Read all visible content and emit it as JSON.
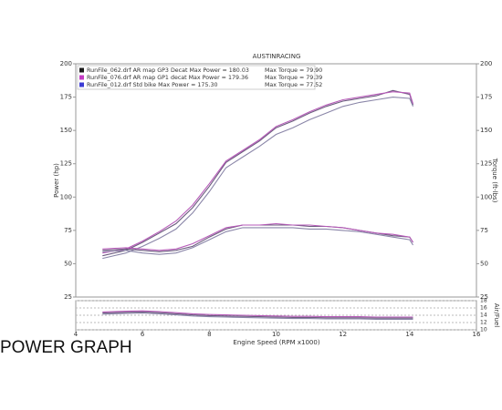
{
  "caption": "POWER GRAPH",
  "chart_data": [
    {
      "type": "line",
      "title": "AUSTINRACING",
      "y_label": "Power (hp)",
      "y2_label": "Torque (ft-lbs)",
      "xlim": [
        4,
        16
      ],
      "ylim": [
        25,
        200
      ],
      "yticks": [
        25,
        50,
        75,
        100,
        125,
        150,
        175,
        200
      ],
      "y2lim": [
        25,
        200
      ],
      "y2ticks": [
        25,
        50,
        75,
        100,
        125,
        150,
        175,
        200
      ],
      "x": [
        4.8,
        5.5,
        6,
        6.5,
        7,
        7.5,
        8,
        8.5,
        9,
        9.5,
        10,
        10.5,
        11,
        11.5,
        12,
        12.5,
        13,
        13.5,
        14,
        14.1
      ],
      "series": [
        {
          "name": "RunFile_062.drf AR map GP3 Decat Max Power = 180.03",
          "color": "#6b5a7e",
          "marker": "#1a1a1a",
          "values": [
            56,
            60,
            66,
            73,
            80,
            92,
            108,
            126,
            134,
            142,
            152,
            157,
            163,
            168,
            172,
            174,
            176,
            180,
            177,
            169
          ]
        },
        {
          "name": "RunFile_076.drf AR map GP1 decat Max Power = 179.36",
          "color": "#b65ab8",
          "marker": "#c43cc4",
          "values": [
            58,
            61,
            67,
            74,
            82,
            94,
            110,
            127,
            135,
            143,
            153,
            158,
            164,
            169,
            173,
            175,
            177,
            179,
            178,
            170
          ]
        },
        {
          "name": "RunFile_012.drf Std bike Max Power = 175.30",
          "color": "#8a86a8",
          "marker": "#3c3cd4",
          "values": [
            54,
            58,
            63,
            69,
            76,
            88,
            104,
            122,
            130,
            138,
            147,
            152,
            158,
            163,
            168,
            171,
            173,
            175,
            174,
            168
          ]
        },
        {
          "name": "Max Torque = 79.90",
          "color": "#6b5a7e",
          "axis": "y2",
          "values": [
            60,
            61,
            60,
            59,
            60,
            63,
            70,
            76,
            79,
            79,
            79,
            79,
            78,
            78,
            77,
            75,
            73,
            71,
            70,
            66
          ]
        },
        {
          "name": "Max Torque = 79.39",
          "color": "#b65ab8",
          "axis": "y2",
          "values": [
            61,
            62,
            61,
            60,
            61,
            65,
            71,
            77,
            79,
            79,
            80,
            79,
            79,
            78,
            77,
            75,
            73,
            72,
            70,
            66
          ]
        },
        {
          "name": "Max Torque = 77.52",
          "color": "#8a86a8",
          "axis": "y2",
          "values": [
            59,
            60,
            58,
            57,
            58,
            62,
            68,
            74,
            77,
            77,
            77,
            77,
            76,
            76,
            75,
            74,
            72,
            70,
            68,
            64
          ]
        }
      ]
    },
    {
      "type": "line",
      "x_label": "Engine Speed (RPM x1000)",
      "y_label": "Air/Fuel",
      "grid": true,
      "xlim": [
        4,
        16
      ],
      "xticks": [
        4,
        6,
        8,
        10,
        12,
        14,
        16
      ],
      "ylim": [
        10,
        18
      ],
      "yticks": [
        10,
        12,
        14,
        16,
        18
      ],
      "x": [
        4.8,
        5.5,
        6,
        6.5,
        7,
        7.5,
        8,
        8.5,
        9,
        9.5,
        10,
        10.5,
        11,
        11.5,
        12,
        12.5,
        13,
        13.5,
        14,
        14.1
      ],
      "series": [
        {
          "color": "#6b5a7e",
          "values": [
            14.6,
            14.8,
            14.9,
            14.7,
            14.4,
            14.1,
            13.9,
            13.8,
            13.7,
            13.6,
            13.5,
            13.4,
            13.4,
            13.3,
            13.3,
            13.3,
            13.2,
            13.2,
            13.2,
            13.2
          ]
        },
        {
          "color": "#b65ab8",
          "values": [
            14.9,
            15.1,
            15.2,
            15.0,
            14.7,
            14.4,
            14.2,
            14.1,
            14.0,
            13.9,
            13.8,
            13.7,
            13.7,
            13.6,
            13.6,
            13.6,
            13.5,
            13.5,
            13.5,
            13.5
          ]
        },
        {
          "color": "#8a86a8",
          "values": [
            14.3,
            14.5,
            14.6,
            14.4,
            14.1,
            13.8,
            13.6,
            13.5,
            13.4,
            13.3,
            13.2,
            13.1,
            13.1,
            13.0,
            13.0,
            13.0,
            12.9,
            12.9,
            12.9,
            12.9
          ]
        }
      ]
    }
  ]
}
